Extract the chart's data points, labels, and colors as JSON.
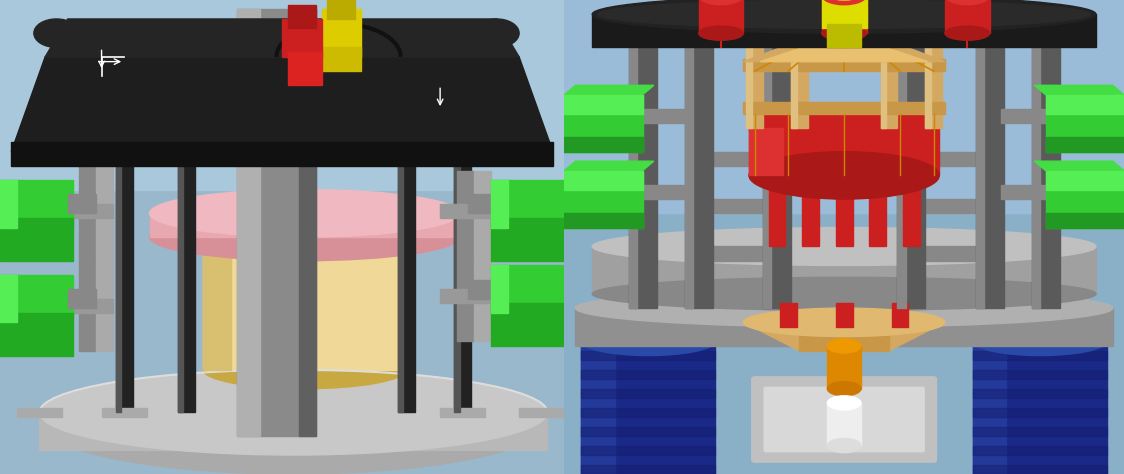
{
  "figure_width": 11.24,
  "figure_height": 4.74,
  "dpi": 100,
  "left_bg": "#9ab8cc",
  "right_bg": "#8ab0c8",
  "colors": {
    "dark_plate": "#1a1a1a",
    "dark_plate2": "#282828",
    "pillar_gray": "#6a6a6a",
    "pillar_light": "#888888",
    "base_gray": "#aaaaaa",
    "base_dark": "#909090",
    "green_bright": "#33cc33",
    "green_dark": "#229922",
    "red": "#cc2020",
    "red_dark": "#aa1818",
    "yellow": "#dddd00",
    "yellow_dark": "#bbbb00",
    "pink": "#e8a0a8",
    "cream": "#f0d898",
    "cream_dark": "#d8b860",
    "tan": "#d4a860",
    "tan_dark": "#b88840",
    "blue_dark": "#1a2888",
    "blue_mid": "#243a9a",
    "orange": "#dd8800",
    "silver": "#c0c0c0",
    "silver_dark": "#909090",
    "black": "#111111"
  }
}
